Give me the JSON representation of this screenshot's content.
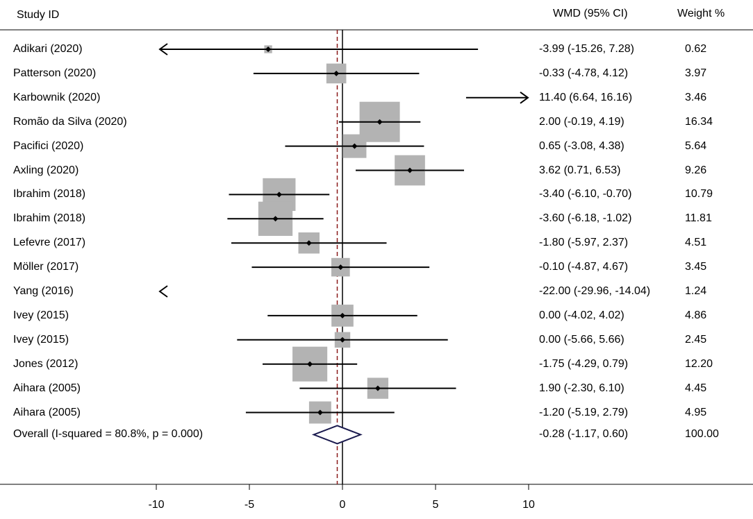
{
  "chart_data": {
    "type": "forest",
    "headers": {
      "study": "Study ID",
      "effect": "WMD (95% CI)",
      "weight": "Weight %"
    },
    "studies": [
      {
        "name": "Adikari (2020)",
        "est": -3.99,
        "lo": -15.26,
        "hi": 7.28,
        "ci_text": "-3.99 (-15.26, 7.28)",
        "weight": 0.62,
        "weight_text": "0.62"
      },
      {
        "name": "Patterson (2020)",
        "est": -0.33,
        "lo": -4.78,
        "hi": 4.12,
        "ci_text": "-0.33 (-4.78, 4.12)",
        "weight": 3.97,
        "weight_text": "3.97"
      },
      {
        "name": "Karbownik (2020)",
        "est": 11.4,
        "lo": 6.64,
        "hi": 16.16,
        "ci_text": "11.40 (6.64, 16.16)",
        "weight": 3.46,
        "weight_text": "3.46"
      },
      {
        "name": "Romão da Silva (2020)",
        "est": 2.0,
        "lo": -0.19,
        "hi": 4.19,
        "ci_text": "2.00 (-0.19, 4.19)",
        "weight": 16.34,
        "weight_text": "16.34"
      },
      {
        "name": "Pacifici (2020)",
        "est": 0.65,
        "lo": -3.08,
        "hi": 4.38,
        "ci_text": "0.65 (-3.08, 4.38)",
        "weight": 5.64,
        "weight_text": "5.64"
      },
      {
        "name": "Axling (2020)",
        "est": 3.62,
        "lo": 0.71,
        "hi": 6.53,
        "ci_text": "3.62 (0.71, 6.53)",
        "weight": 9.26,
        "weight_text": "9.26"
      },
      {
        "name": "Ibrahim (2018)",
        "est": -3.4,
        "lo": -6.1,
        "hi": -0.7,
        "ci_text": "-3.40 (-6.10, -0.70)",
        "weight": 10.79,
        "weight_text": "10.79"
      },
      {
        "name": "Ibrahim (2018)",
        "est": -3.6,
        "lo": -6.18,
        "hi": -1.02,
        "ci_text": "-3.60 (-6.18, -1.02)",
        "weight": 11.81,
        "weight_text": "11.81"
      },
      {
        "name": "Lefevre (2017)",
        "est": -1.8,
        "lo": -5.97,
        "hi": 2.37,
        "ci_text": "-1.80 (-5.97, 2.37)",
        "weight": 4.51,
        "weight_text": "4.51"
      },
      {
        "name": "Möller  (2017)",
        "est": -0.1,
        "lo": -4.87,
        "hi": 4.67,
        "ci_text": "-0.10 (-4.87, 4.67)",
        "weight": 3.45,
        "weight_text": "3.45"
      },
      {
        "name": "Yang (2016)",
        "est": -22.0,
        "lo": -29.96,
        "hi": -14.04,
        "ci_text": "-22.00 (-29.96, -14.04)",
        "weight": 1.24,
        "weight_text": "1.24"
      },
      {
        "name": "Ivey (2015)",
        "est": 0.0,
        "lo": -4.02,
        "hi": 4.02,
        "ci_text": "0.00 (-4.02, 4.02)",
        "weight": 4.86,
        "weight_text": "4.86"
      },
      {
        "name": "Ivey (2015)",
        "est": 0.0,
        "lo": -5.66,
        "hi": 5.66,
        "ci_text": "0.00 (-5.66, 5.66)",
        "weight": 2.45,
        "weight_text": "2.45"
      },
      {
        "name": "Jones  (2012)",
        "est": -1.75,
        "lo": -4.29,
        "hi": 0.79,
        "ci_text": "-1.75 (-4.29, 0.79)",
        "weight": 12.2,
        "weight_text": "12.20"
      },
      {
        "name": "Aihara (2005)",
        "est": 1.9,
        "lo": -2.3,
        "hi": 6.1,
        "ci_text": "1.90 (-2.30, 6.10)",
        "weight": 4.45,
        "weight_text": "4.45"
      },
      {
        "name": "Aihara (2005)",
        "est": -1.2,
        "lo": -5.19,
        "hi": 2.79,
        "ci_text": "-1.20 (-5.19, 2.79)",
        "weight": 4.95,
        "weight_text": "4.95"
      }
    ],
    "overall": {
      "name": "Overall  (I-squared = 80.8%, p = 0.000)",
      "est": -0.28,
      "lo": -1.17,
      "hi": 0.6,
      "ci_text": "-0.28 (-1.17, 0.60)",
      "weight_text": "100.00"
    },
    "xlim": [
      -10,
      10
    ],
    "xticks": [
      -10,
      -5,
      0,
      5,
      10
    ],
    "xtick_labels": [
      "-10",
      "-5",
      "0",
      "5",
      "10"
    ],
    "null_line": 0,
    "colors": {
      "box": "#b3b3b3",
      "line": "#000000",
      "diamond": "#1a1a4e",
      "overall_line": "#8b1a1a"
    }
  }
}
